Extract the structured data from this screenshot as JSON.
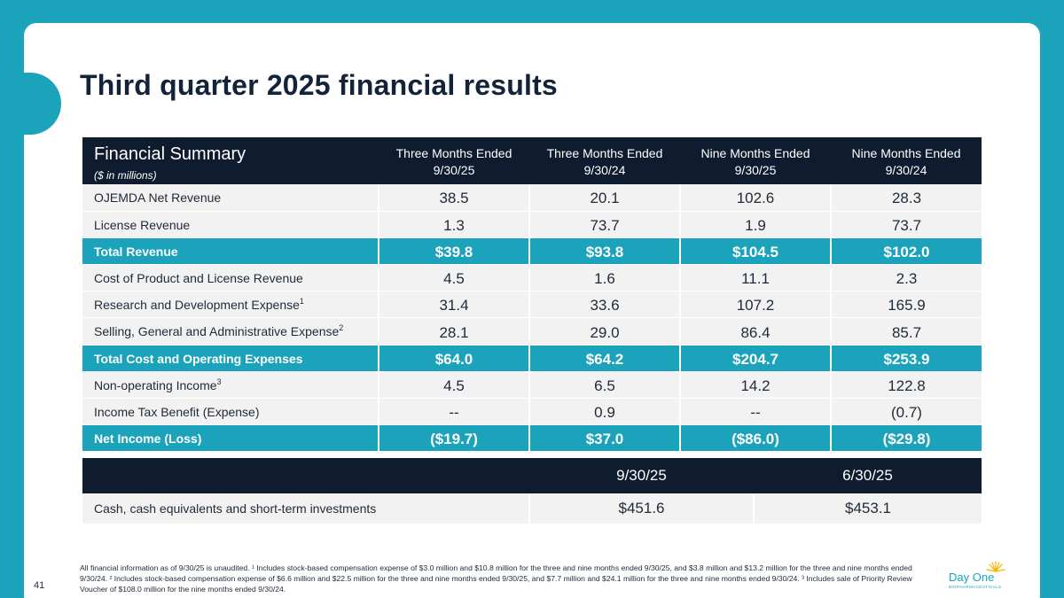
{
  "slide": {
    "title": "Third quarter 2025 financial results",
    "page_number": "41",
    "colors": {
      "accent": "#1aa3bb",
      "header": "#0f1b2e",
      "row": "#f2f2f2",
      "logo_sun": "#f5b400"
    }
  },
  "summary_table": {
    "title": "Financial Summary",
    "subtitle": "($ in millions)",
    "columns": [
      {
        "line1": "Three Months Ended",
        "line2": "9/30/25"
      },
      {
        "line1": "Three Months Ended",
        "line2": "9/30/24"
      },
      {
        "line1": "Nine Months Ended",
        "line2": "9/30/25"
      },
      {
        "line1": "Nine Months Ended",
        "line2": "9/30/24"
      }
    ],
    "rows": [
      {
        "label": "OJEMDA Net Revenue",
        "sup": "",
        "values": [
          "38.5",
          "20.1",
          "102.6",
          "28.3"
        ]
      },
      {
        "label": "License Revenue",
        "sup": "",
        "values": [
          "1.3",
          "73.7",
          "1.9",
          "73.7"
        ]
      },
      {
        "label": "Total Revenue",
        "sup": "",
        "values": [
          "$39.8",
          "$93.8",
          "$104.5",
          "$102.0"
        ]
      },
      {
        "label": "Cost of Product and License Revenue",
        "sup": "",
        "values": [
          "4.5",
          "1.6",
          "11.1",
          "2.3"
        ]
      },
      {
        "label": "Research and Development Expense",
        "sup": "1",
        "values": [
          "31.4",
          "33.6",
          "107.2",
          "165.9"
        ]
      },
      {
        "label": "Selling, General and Administrative Expense",
        "sup": "2",
        "values": [
          "28.1",
          "29.0",
          "86.4",
          "85.7"
        ]
      },
      {
        "label": "Total Cost and Operating Expenses",
        "sup": "",
        "values": [
          "$64.0",
          "$64.2",
          "$204.7",
          "$253.9"
        ]
      },
      {
        "label": "Non-operating Income",
        "sup": "3",
        "values": [
          "4.5",
          "6.5",
          "14.2",
          "122.8"
        ]
      },
      {
        "label": "Income Tax Benefit (Expense)",
        "sup": "",
        "values": [
          "--",
          "0.9",
          "--",
          "(0.7)"
        ]
      },
      {
        "label": "Net Income (Loss)",
        "sup": "",
        "values": [
          "($19.7)",
          "$37.0",
          "($86.0)",
          "($29.8)"
        ]
      }
    ]
  },
  "cash_table": {
    "columns": [
      "9/30/25",
      "6/30/25"
    ],
    "row": {
      "label": "Cash, cash equivalents and short-term investments",
      "values": [
        "$451.6",
        "$453.1"
      ]
    }
  },
  "footnote": "All financial information as of 9/30/25 is unaudited. ¹ Includes stock-based compensation expense of $3.0 million and $10.8 million for the three and nine months ended 9/30/25, and $3.8 million and $13.2 million for the three and nine months ended 9/30/24. ² Includes stock-based compensation expense of $6.6 million and $22.5 million for the three and nine months ended 9/30/25, and $7.7 million and $24.1 million for the three and nine months ended 9/30/24. ³ Includes sale of Priority Review Voucher of $108.0 million for the nine months ended 9/30/24.",
  "logo": {
    "name": "Day One",
    "tagline": "BIOPHARMACEUTICALS",
    "icon": "sun-icon"
  }
}
